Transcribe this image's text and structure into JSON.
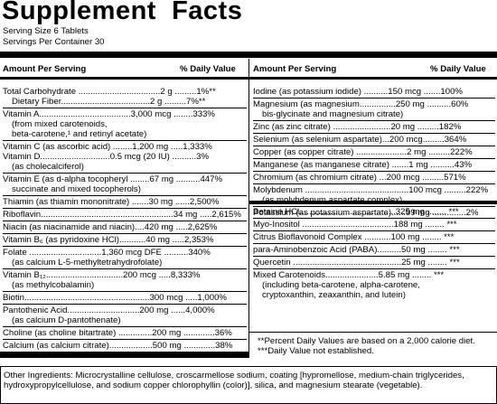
{
  "panel": {
    "title": "Supplement  Facts",
    "serving_size": "Serving Size 6 Tablets",
    "servings_per_container": "Servings Per Container 30",
    "left_header_amount": "Amount Per Serving",
    "left_header_dv": "% Daily Value",
    "right_header_amount": "Amount Per Serving",
    "right_header_dv": "% Daily Value"
  },
  "left_column": [
    {
      "text": "Total Carbohydrate ..................................2 g .........1%**"
    },
    {
      "text": "Dietary Fiber.....................................2 g .........7%**",
      "indent": true
    },
    {
      "text": "Vitamin A......................................3,000 mcg ........333%"
    },
    {
      "text": "(from mixed carotenoids,",
      "indent": true
    },
    {
      "text": "beta-carotene,¹ and retinyl acetate)",
      "indent": true
    },
    {
      "text": "Vitamin C (as ascorbic acid) ........1,200 mg .....1,333%"
    },
    {
      "text": "Vitamin D.............................0.5 mcg (20 IU) ..........3%"
    },
    {
      "text": "(as cholecalciferol)",
      "indent": true
    },
    {
      "text": "Vitamin E (as d-alpha tocopheryl ........67 mg ..........447%"
    },
    {
      "text": "succinate and mixed tocopherols)",
      "indent": true
    },
    {
      "text": "Thiamin (as thiamin mononitrate) .......30 mg ......2,500%"
    },
    {
      "text": "Riboflavin.......................................................34 mg .....2,615%"
    },
    {
      "text": "Niacin (as niacinamide and niacin)....420 mg .....2,625%"
    },
    {
      "text": "Vitamin B₆ (as pyridoxine HCl)...........40 mg .....2,353%"
    },
    {
      "text": "Folate ..............................1,360 mcg DFE ..........340%"
    },
    {
      "text": "(as calcium L-5-methyltetrahydrofolate)",
      "indent": true
    },
    {
      "text": "Vitamin B₁₂................................200 mcg .....8,333%"
    },
    {
      "text": "(as methylcobalamin)",
      "indent": true
    },
    {
      "text": "Biotin....................................................300 mcg .....1,000%"
    },
    {
      "text": "Pantothenic Acid..............................200 mg ......4,000%"
    },
    {
      "text": "(as calcium D-pantothenate)",
      "indent": true
    },
    {
      "text": "Choline (as choline bitartrate) ..............200 mg .............36%"
    },
    {
      "text": "Calcium (as calcium citrate)..................500 mg .............38%"
    }
  ],
  "right_column_top": [
    {
      "text": "Iodine (as potassium iodide) ..........150 mcg .......100%"
    },
    {
      "text": "Magnesium (as magnesium...............250 mg ..........60%"
    },
    {
      "text": "bis-glycinate and magnesium citrate)",
      "indent": true
    },
    {
      "text": "Zinc (as zinc citrate) ........................20 mg .........182%"
    },
    {
      "text": "Selenium (as selenium aspartate)...200 mcg.........364%"
    },
    {
      "text": "Copper (as copper citrate) .....................2 mg .........222%"
    },
    {
      "text": "Manganese (as manganese citrate) .......1 mg ..........43%"
    },
    {
      "text": "Chromium (as chromium citrate) ...200 mcg .........571%"
    },
    {
      "text": "Molybdenum ...........................................100 mcg .........222%"
    },
    {
      "text": "(as molybdenum aspartate complex)",
      "indent": true
    },
    {
      "text": "Potassium (as potassium aspartate)......99 mg ..............2%"
    }
  ],
  "right_column_bottom": [
    {
      "text": "Betaine HCl........................................325 mg ........ ***"
    },
    {
      "text": "Myo-Inositol ......................................188 mg ........ ***"
    },
    {
      "text": "Citrus Bioflavonoid Complex ...........100 mg ........ ***"
    },
    {
      "text": "para-Aminobenzoic Acid (PABA)..........50 mg ........ ***"
    },
    {
      "text": "Quercetin .............................................25 mg ........ ***"
    },
    {
      "text": "Mixed Carotenoids......................5.85 mg ........ ***"
    },
    {
      "text": "(including beta-carotene, alpha-carotene,",
      "indent": true
    },
    {
      "text": "cryptoxanthin, zeaxanthin, and lutein)",
      "indent": true
    }
  ],
  "notes": {
    "note_1": "**Percent Daily Values are based on a 2,000 calorie diet.",
    "note_2": "***Daily Value not established."
  },
  "other_ingredients": "Other Ingredients: Microcrystalline cellulose, croscarmellose sodium, coating [hypromellose, medium-chain triglycerides, hydroxypropylcellulose, and sodium copper chlorophyllin (color)], silica, and magnesium stearate (vegetable)."
}
